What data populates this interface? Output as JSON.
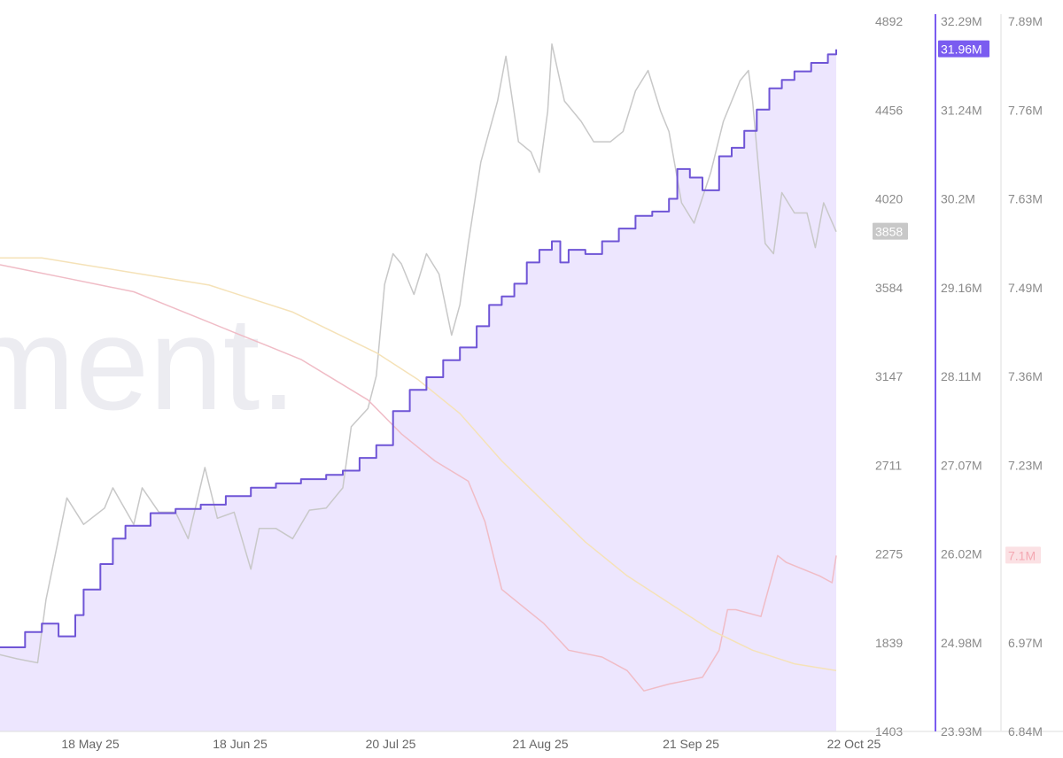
{
  "watermark": "ment.",
  "chart_data": {
    "type": "line",
    "x_labels": [
      "18 May 25",
      "18 Jun 25",
      "20 Jul 25",
      "21 Aug 25",
      "21 Sep 25",
      "22 Oct 25"
    ],
    "axes": {
      "price": {
        "ticks": [
          "4892",
          "4456",
          "4020",
          "3584",
          "3147",
          "2711",
          "2275",
          "1839",
          "1403"
        ],
        "range": [
          1403,
          4892
        ],
        "current": "3858"
      },
      "addresses": {
        "ticks": [
          "32.29M",
          "31.24M",
          "30.2M",
          "29.16M",
          "28.11M",
          "27.07M",
          "26.02M",
          "24.98M",
          "23.93M"
        ],
        "range": [
          23.93,
          32.29
        ],
        "current": "31.96M"
      },
      "third": {
        "ticks": [
          "7.89M",
          "7.76M",
          "7.63M",
          "7.49M",
          "7.36M",
          "7.23M",
          "7.1M",
          "6.97M",
          "6.84M"
        ],
        "range": [
          6.84,
          7.89
        ],
        "current": "7.1M"
      }
    },
    "series": [
      {
        "axis": "price",
        "color": "#c8c8c8",
        "style": "line",
        "points": [
          [
            0,
            1780
          ],
          [
            0.02,
            1760
          ],
          [
            0.045,
            1740
          ],
          [
            0.055,
            2050
          ],
          [
            0.07,
            2350
          ],
          [
            0.08,
            2550
          ],
          [
            0.1,
            2420
          ],
          [
            0.125,
            2500
          ],
          [
            0.135,
            2600
          ],
          [
            0.16,
            2420
          ],
          [
            0.17,
            2600
          ],
          [
            0.19,
            2480
          ],
          [
            0.21,
            2480
          ],
          [
            0.225,
            2350
          ],
          [
            0.245,
            2700
          ],
          [
            0.26,
            2450
          ],
          [
            0.28,
            2480
          ],
          [
            0.3,
            2200
          ],
          [
            0.31,
            2400
          ],
          [
            0.33,
            2400
          ],
          [
            0.35,
            2350
          ],
          [
            0.37,
            2490
          ],
          [
            0.39,
            2500
          ],
          [
            0.41,
            2600
          ],
          [
            0.42,
            2900
          ],
          [
            0.44,
            2990
          ],
          [
            0.45,
            3150
          ],
          [
            0.46,
            3600
          ],
          [
            0.47,
            3750
          ],
          [
            0.48,
            3700
          ],
          [
            0.495,
            3550
          ],
          [
            0.51,
            3750
          ],
          [
            0.525,
            3650
          ],
          [
            0.54,
            3350
          ],
          [
            0.55,
            3500
          ],
          [
            0.56,
            3800
          ],
          [
            0.575,
            4200
          ],
          [
            0.585,
            4350
          ],
          [
            0.595,
            4500
          ],
          [
            0.605,
            4720
          ],
          [
            0.62,
            4300
          ],
          [
            0.635,
            4250
          ],
          [
            0.645,
            4150
          ],
          [
            0.655,
            4450
          ],
          [
            0.66,
            4780
          ],
          [
            0.675,
            4500
          ],
          [
            0.695,
            4400
          ],
          [
            0.71,
            4300
          ],
          [
            0.73,
            4300
          ],
          [
            0.745,
            4350
          ],
          [
            0.76,
            4550
          ],
          [
            0.775,
            4650
          ],
          [
            0.79,
            4450
          ],
          [
            0.8,
            4350
          ],
          [
            0.815,
            4000
          ],
          [
            0.83,
            3900
          ],
          [
            0.85,
            4150
          ],
          [
            0.865,
            4400
          ],
          [
            0.885,
            4600
          ],
          [
            0.895,
            4650
          ],
          [
            0.9,
            4500
          ],
          [
            0.915,
            3800
          ],
          [
            0.925,
            3750
          ],
          [
            0.935,
            4050
          ],
          [
            0.95,
            3950
          ],
          [
            0.965,
            3950
          ],
          [
            0.975,
            3780
          ],
          [
            0.985,
            4000
          ],
          [
            1.0,
            3858
          ]
        ]
      },
      {
        "axis": "addresses",
        "color": "#6f55d6",
        "style": "step-area",
        "fill": "#ede6fe",
        "points": [
          [
            0,
            24.92
          ],
          [
            0.03,
            25.1
          ],
          [
            0.05,
            25.2
          ],
          [
            0.07,
            25.05
          ],
          [
            0.09,
            25.3
          ],
          [
            0.1,
            25.6
          ],
          [
            0.12,
            25.9
          ],
          [
            0.135,
            26.2
          ],
          [
            0.15,
            26.35
          ],
          [
            0.18,
            26.5
          ],
          [
            0.21,
            26.55
          ],
          [
            0.24,
            26.6
          ],
          [
            0.27,
            26.7
          ],
          [
            0.3,
            26.8
          ],
          [
            0.33,
            26.85
          ],
          [
            0.36,
            26.9
          ],
          [
            0.39,
            26.95
          ],
          [
            0.41,
            27.0
          ],
          [
            0.43,
            27.15
          ],
          [
            0.45,
            27.3
          ],
          [
            0.47,
            27.7
          ],
          [
            0.49,
            27.95
          ],
          [
            0.51,
            28.1
          ],
          [
            0.53,
            28.3
          ],
          [
            0.55,
            28.45
          ],
          [
            0.57,
            28.7
          ],
          [
            0.585,
            28.95
          ],
          [
            0.6,
            29.05
          ],
          [
            0.615,
            29.2
          ],
          [
            0.63,
            29.45
          ],
          [
            0.645,
            29.6
          ],
          [
            0.66,
            29.7
          ],
          [
            0.67,
            29.45
          ],
          [
            0.68,
            29.6
          ],
          [
            0.7,
            29.55
          ],
          [
            0.72,
            29.7
          ],
          [
            0.74,
            29.85
          ],
          [
            0.76,
            30.0
          ],
          [
            0.78,
            30.05
          ],
          [
            0.8,
            30.2
          ],
          [
            0.81,
            30.55
          ],
          [
            0.825,
            30.45
          ],
          [
            0.84,
            30.3
          ],
          [
            0.86,
            30.7
          ],
          [
            0.875,
            30.8
          ],
          [
            0.89,
            31.0
          ],
          [
            0.905,
            31.25
          ],
          [
            0.92,
            31.5
          ],
          [
            0.935,
            31.6
          ],
          [
            0.95,
            31.7
          ],
          [
            0.97,
            31.8
          ],
          [
            0.99,
            31.9
          ],
          [
            1.0,
            31.96
          ]
        ]
      },
      {
        "axis": "third",
        "color": "#f0bcc6",
        "style": "line",
        "points": [
          [
            0,
            7.53
          ],
          [
            0.04,
            7.52
          ],
          [
            0.08,
            7.51
          ],
          [
            0.12,
            7.5
          ],
          [
            0.16,
            7.49
          ],
          [
            0.2,
            7.47
          ],
          [
            0.24,
            7.45
          ],
          [
            0.28,
            7.43
          ],
          [
            0.32,
            7.41
          ],
          [
            0.36,
            7.39
          ],
          [
            0.4,
            7.36
          ],
          [
            0.44,
            7.33
          ],
          [
            0.48,
            7.28
          ],
          [
            0.52,
            7.24
          ],
          [
            0.56,
            7.21
          ],
          [
            0.58,
            7.15
          ],
          [
            0.6,
            7.05
          ],
          [
            0.62,
            7.03
          ],
          [
            0.65,
            7.0
          ],
          [
            0.68,
            6.96
          ],
          [
            0.72,
            6.95
          ],
          [
            0.75,
            6.93
          ],
          [
            0.77,
            6.9
          ],
          [
            0.8,
            6.91
          ],
          [
            0.84,
            6.92
          ],
          [
            0.86,
            6.96
          ],
          [
            0.87,
            7.02
          ],
          [
            0.88,
            7.02
          ],
          [
            0.91,
            7.01
          ],
          [
            0.93,
            7.1
          ],
          [
            0.94,
            7.09
          ],
          [
            0.96,
            7.08
          ],
          [
            0.98,
            7.07
          ],
          [
            0.995,
            7.06
          ],
          [
            1.0,
            7.1
          ]
        ]
      },
      {
        "axis": "third",
        "color": "#f5e2b8",
        "style": "line",
        "points": [
          [
            0,
            7.54
          ],
          [
            0.05,
            7.54
          ],
          [
            0.1,
            7.53
          ],
          [
            0.15,
            7.52
          ],
          [
            0.2,
            7.51
          ],
          [
            0.25,
            7.5
          ],
          [
            0.3,
            7.48
          ],
          [
            0.35,
            7.46
          ],
          [
            0.4,
            7.43
          ],
          [
            0.45,
            7.4
          ],
          [
            0.5,
            7.36
          ],
          [
            0.55,
            7.31
          ],
          [
            0.6,
            7.24
          ],
          [
            0.65,
            7.18
          ],
          [
            0.7,
            7.12
          ],
          [
            0.75,
            7.07
          ],
          [
            0.8,
            7.03
          ],
          [
            0.85,
            6.99
          ],
          [
            0.9,
            6.96
          ],
          [
            0.95,
            6.94
          ],
          [
            1.0,
            6.93
          ]
        ]
      }
    ]
  }
}
